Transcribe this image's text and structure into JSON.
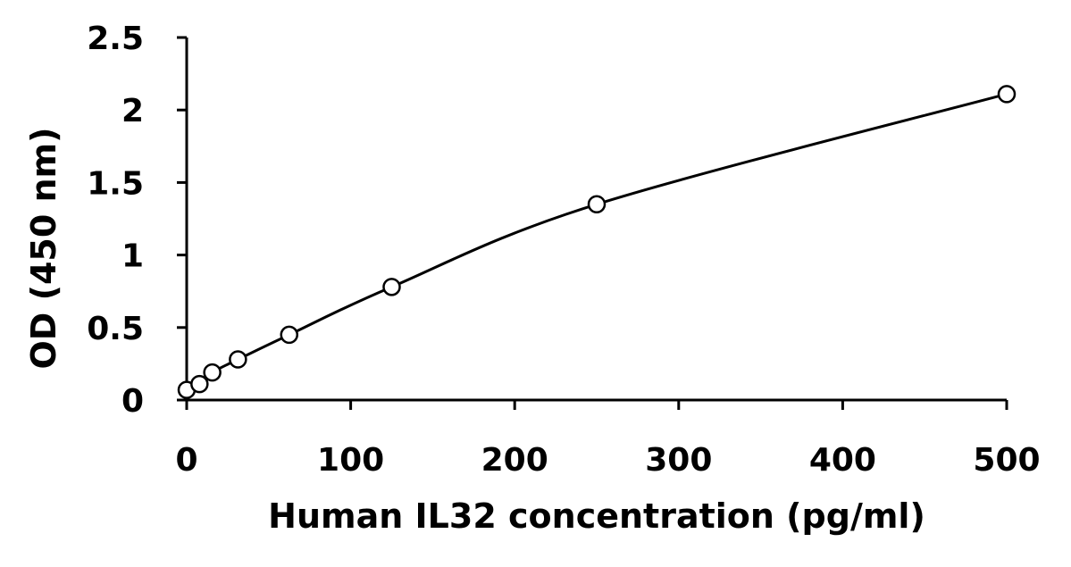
{
  "chart_data": {
    "type": "scatter",
    "xlabel": "Human IL32 concentration (pg/ml)",
    "ylabel": "OD (450 nm)",
    "xlim": [
      0,
      500
    ],
    "ylim": [
      0,
      2.5
    ],
    "xticks": [
      "0",
      "100",
      "200",
      "300",
      "400",
      "500"
    ],
    "yticks": [
      "0",
      "0.5",
      "1",
      "1.5",
      "2",
      "2.5"
    ],
    "grid": false,
    "legend": "none",
    "marker": "open-circle",
    "fit_line": "smooth curve",
    "color": "#000000",
    "series": [
      {
        "x": [
          0,
          7.8,
          15.6,
          31.25,
          62.5,
          125,
          250,
          500
        ],
        "y": [
          0.07,
          0.11,
          0.19,
          0.28,
          0.45,
          0.78,
          1.35,
          2.11
        ]
      }
    ]
  }
}
